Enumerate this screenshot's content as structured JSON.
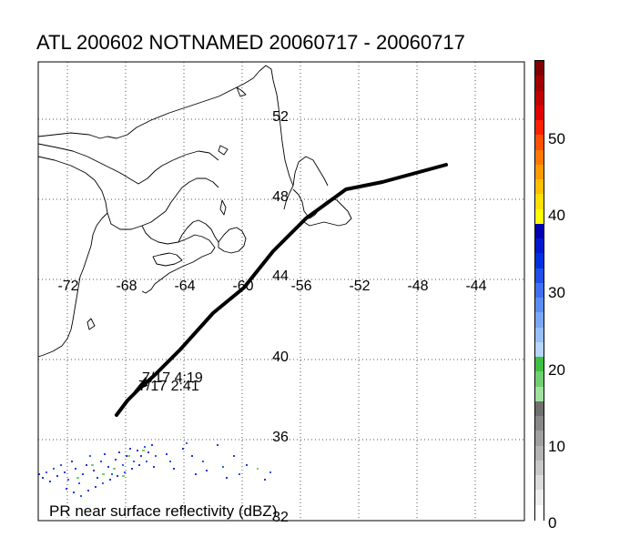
{
  "title": "ATL 200602 NOTNAMED 20060717 - 20060717",
  "caption": "PR near surface reflectivity (dBZ)",
  "lon_labels": [
    "-72",
    "-68",
    "-64",
    "-60",
    "-56",
    "-52",
    "-48",
    "-44"
  ],
  "lat_labels": [
    "52",
    "48",
    "44",
    "40",
    "36",
    "32"
  ],
  "track_labels": [
    "7/17 4:19",
    "7/17 2:41"
  ],
  "colorbar": {
    "labels": [
      "50",
      "40",
      "30",
      "20",
      "10",
      "0"
    ],
    "colors": [
      "#800000",
      "#a00000",
      "#c00000",
      "#e00000",
      "#ff2000",
      "#ff5000",
      "#ff7800",
      "#ff9a00",
      "#ffc000",
      "#ffe000",
      "#ffff00",
      "#0000b0",
      "#0018d0",
      "#0030e0",
      "#2050e8",
      "#4070f0",
      "#5b8ef0",
      "#7aa8f4",
      "#98c0f8",
      "#b6d4fc",
      "#40c040",
      "#70d070",
      "#a0e0a0",
      "#707070",
      "#888888",
      "#a0a0a0",
      "#b4b4b4",
      "#c8c8c8",
      "#dcdcdc",
      "#eeeeee",
      "#ffffff"
    ]
  },
  "colors": {
    "frame": "#000000",
    "grid": "#555555",
    "track": "#000000",
    "precip_blue": "#1a3cdc",
    "precip_green": "#7ccf6b"
  }
}
